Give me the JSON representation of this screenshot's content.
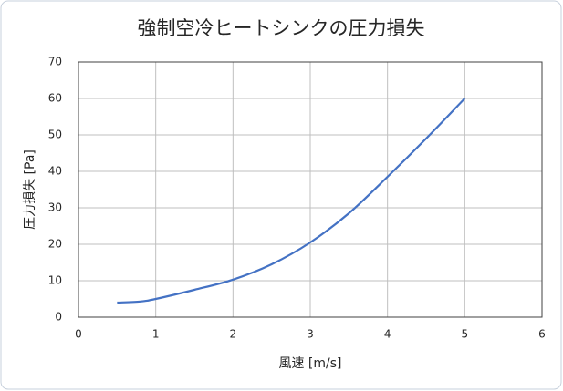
{
  "chart_data": {
    "type": "line",
    "title": "強制空冷ヒートシンクの圧力損失",
    "x_label": "風速 [m/s]",
    "y_label": "圧力損失 [Pa]",
    "x": [
      0.5,
      0.8,
      1,
      1.5,
      2,
      2.5,
      3,
      3.5,
      4,
      4.5,
      5
    ],
    "series": [
      {
        "color": "#4472c4",
        "values": [
          4,
          4.3,
          5,
          7.5,
          10.3,
          14.5,
          20.5,
          28.5,
          38.5,
          49,
          60
        ]
      }
    ],
    "xlim": [
      0,
      6
    ],
    "xticks": [
      0,
      1,
      2,
      3,
      4,
      5,
      6
    ],
    "ylim": [
      0,
      70
    ],
    "yticks": [
      0,
      10,
      20,
      30,
      40,
      50,
      60,
      70
    ],
    "grid": true
  }
}
